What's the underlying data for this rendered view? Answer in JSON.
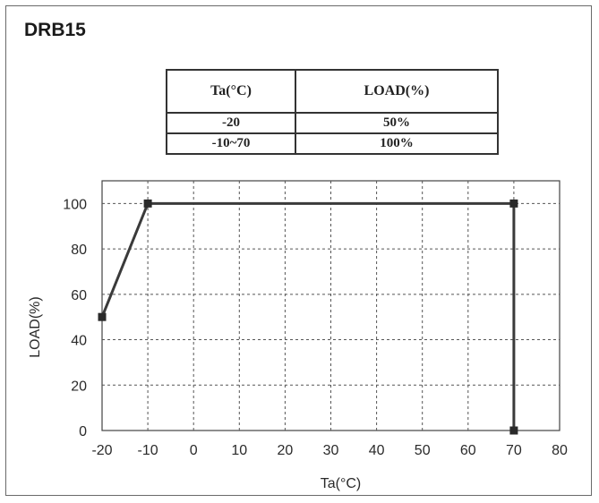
{
  "title": "DRB15",
  "table": {
    "headers": [
      "Ta(°C)",
      "LOAD(%)"
    ],
    "rows": [
      [
        "-20",
        "50%"
      ],
      [
        "-10~70",
        "100%"
      ]
    ]
  },
  "chart_data": {
    "type": "line",
    "title": "",
    "xlabel": "Ta(°C)",
    "ylabel": "LOAD(%)",
    "xlim": [
      -20,
      80
    ],
    "ylim": [
      0,
      110
    ],
    "x_ticks": [
      -20,
      -10,
      0,
      10,
      20,
      30,
      40,
      50,
      60,
      70,
      80
    ],
    "y_ticks": [
      0,
      20,
      40,
      60,
      80,
      100
    ],
    "grid": true,
    "series": [
      {
        "x": [
          -20,
          -10,
          70,
          70
        ],
        "y": [
          50,
          100,
          100,
          0
        ]
      }
    ],
    "colors": {
      "line": "#3a3a3a",
      "marker": "#2a2a2a",
      "grid": "#555555"
    }
  }
}
